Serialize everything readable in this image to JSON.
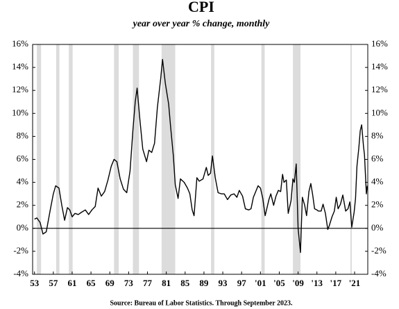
{
  "chart_data": {
    "type": "line",
    "title": "CPI",
    "subtitle": "year over year % change, monthly",
    "source": "Source: Bureau of Labor Statistics. Through September 2023.",
    "x": [
      1953.0,
      1953.5,
      1954.2,
      1954.8,
      1955.5,
      1956.3,
      1957.0,
      1957.5,
      1958.2,
      1958.8,
      1959.4,
      1960.0,
      1960.5,
      1961.0,
      1961.6,
      1962.3,
      1963.0,
      1963.8,
      1964.5,
      1965.2,
      1965.9,
      1966.5,
      1967.2,
      1967.9,
      1968.6,
      1969.3,
      1969.9,
      1970.5,
      1971.2,
      1971.9,
      1972.6,
      1973.3,
      1973.9,
      1974.4,
      1974.8,
      1975.4,
      1976.0,
      1976.8,
      1977.3,
      1977.9,
      1978.5,
      1979.1,
      1979.8,
      1980.2,
      1980.8,
      1981.5,
      1981.9,
      1982.5,
      1982.9,
      1983.5,
      1984.0,
      1984.8,
      1985.5,
      1986.0,
      1986.5,
      1986.9,
      1987.5,
      1988.0,
      1988.8,
      1989.5,
      1989.9,
      1990.4,
      1990.8,
      1991.4,
      1992.0,
      1992.7,
      1993.3,
      1994.0,
      1994.7,
      1995.4,
      1996.0,
      1996.5,
      1997.2,
      1997.8,
      1998.5,
      1999.0,
      1999.5,
      2000.0,
      2000.5,
      2001.0,
      2001.5,
      2002.0,
      2002.8,
      2003.2,
      2003.8,
      2004.3,
      2004.8,
      2005.3,
      2005.7,
      2006.0,
      2006.5,
      2006.9,
      2007.5,
      2007.9,
      2008.2,
      2008.6,
      2009.0,
      2009.5,
      2009.9,
      2010.4,
      2010.8,
      2011.3,
      2011.7,
      2012.1,
      2012.5,
      2013.0,
      2013.3,
      2013.9,
      2014.3,
      2014.8,
      2015.3,
      2015.6,
      2016.2,
      2016.7,
      2017.1,
      2017.5,
      2018.0,
      2018.5,
      2019.1,
      2019.6,
      2020.0,
      2020.4,
      2020.9,
      2021.2,
      2021.5,
      2021.9,
      2022.2,
      2022.5,
      2022.9,
      2023.1,
      2023.5,
      2023.7
    ],
    "series": [
      {
        "name": "CPI",
        "color": "#000000",
        "values": [
          0.8,
          0.9,
          0.5,
          -0.5,
          -0.3,
          1.5,
          3.0,
          3.7,
          3.5,
          2.0,
          0.7,
          1.8,
          1.6,
          1.0,
          1.3,
          1.2,
          1.4,
          1.6,
          1.2,
          1.6,
          1.9,
          3.5,
          2.8,
          3.2,
          4.2,
          5.4,
          6.0,
          5.8,
          4.3,
          3.4,
          3.1,
          5.0,
          8.5,
          11.0,
          12.2,
          9.4,
          6.9,
          5.8,
          6.8,
          6.6,
          7.4,
          10.5,
          13.0,
          14.7,
          12.6,
          10.8,
          8.9,
          6.3,
          3.8,
          2.6,
          4.3,
          4.0,
          3.5,
          3.0,
          1.6,
          1.1,
          4.4,
          4.1,
          4.3,
          5.3,
          4.6,
          4.8,
          6.3,
          4.4,
          3.1,
          3.0,
          3.0,
          2.5,
          2.9,
          3.0,
          2.7,
          3.3,
          2.8,
          1.7,
          1.6,
          1.7,
          2.7,
          3.2,
          3.7,
          3.5,
          2.6,
          1.1,
          2.5,
          3.0,
          2.0,
          2.8,
          3.3,
          3.2,
          4.7,
          4.0,
          4.2,
          1.3,
          2.4,
          4.3,
          4.0,
          5.6,
          0.0,
          -2.1,
          2.7,
          2.0,
          1.1,
          3.2,
          3.9,
          2.9,
          1.7,
          1.6,
          1.5,
          1.5,
          2.1,
          1.3,
          -0.1,
          0.2,
          1.0,
          1.5,
          2.7,
          1.7,
          2.1,
          2.9,
          1.5,
          1.7,
          2.3,
          0.1,
          1.4,
          2.6,
          5.4,
          7.0,
          8.5,
          9.0,
          7.1,
          6.4,
          3.0,
          3.7
        ]
      }
    ],
    "recessions": [
      [
        1953.5,
        1954.4
      ],
      [
        1957.6,
        1958.3
      ],
      [
        1960.3,
        1961.1
      ],
      [
        1969.9,
        1970.9
      ],
      [
        1973.9,
        1975.2
      ],
      [
        1980.0,
        1982.9
      ],
      [
        1990.5,
        1991.2
      ],
      [
        2001.2,
        2001.9
      ],
      [
        2007.9,
        2009.5
      ],
      [
        2020.1,
        2020.4
      ]
    ],
    "xlim": [
      1952.6,
      2023.8
    ],
    "xticks": [
      {
        "value": 1953,
        "label": "53"
      },
      {
        "value": 1957,
        "label": "57"
      },
      {
        "value": 1961,
        "label": "61"
      },
      {
        "value": 1965,
        "label": "65"
      },
      {
        "value": 1969,
        "label": "69"
      },
      {
        "value": 1973,
        "label": "73"
      },
      {
        "value": 1977,
        "label": "77"
      },
      {
        "value": 1981,
        "label": "81"
      },
      {
        "value": 1985,
        "label": "85"
      },
      {
        "value": 1989,
        "label": "89"
      },
      {
        "value": 1993,
        "label": "93"
      },
      {
        "value": 1997,
        "label": "97"
      },
      {
        "value": 2001,
        "label": "'01"
      },
      {
        "value": 2005,
        "label": "'05"
      },
      {
        "value": 2009,
        "label": "'09"
      },
      {
        "value": 2013,
        "label": "'13"
      },
      {
        "value": 2017,
        "label": "'17"
      },
      {
        "value": 2021,
        "label": "'21"
      }
    ],
    "ylim": [
      -4,
      16
    ],
    "yticks": [
      {
        "value": -4,
        "label": "-4%"
      },
      {
        "value": -2,
        "label": "-2%"
      },
      {
        "value": 0,
        "label": "0%"
      },
      {
        "value": 2,
        "label": "2%"
      },
      {
        "value": 4,
        "label": "4%"
      },
      {
        "value": 6,
        "label": "6%"
      },
      {
        "value": 8,
        "label": "8%"
      },
      {
        "value": 10,
        "label": "10%"
      },
      {
        "value": 12,
        "label": "12%"
      },
      {
        "value": 14,
        "label": "14%"
      },
      {
        "value": 16,
        "label": "16%"
      }
    ],
    "recession_color": "#dcdcdc"
  }
}
